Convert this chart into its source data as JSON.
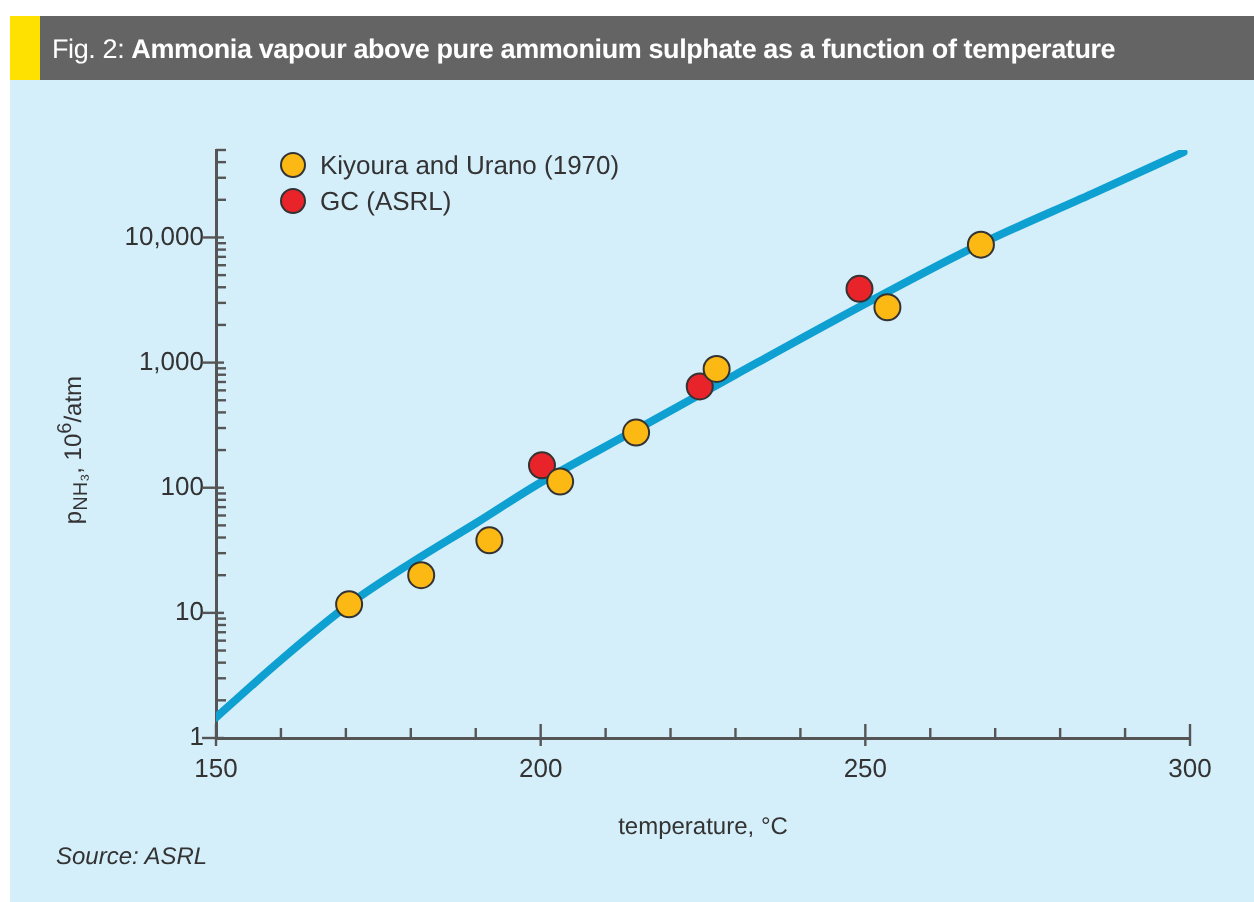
{
  "chart_data": {
    "type": "scatter",
    "title": "Fig. 2: Ammonia vapour above pure ammonium sulphate as a function of temperature",
    "xlabel": "temperature, °C",
    "ylabel": "p$_{NH₃}$, 10$^{6}$/atm",
    "annotations": [
      "Source: ASRL"
    ],
    "log": "y",
    "grid": false,
    "legend": "top left",
    "marker": "circle",
    "xlim": [
      150,
      300
    ],
    "xticks": [
      150,
      {
        "value": 160,
        "label": null
      },
      {
        "value": 170,
        "label": null
      },
      {
        "value": 180,
        "label": null
      },
      {
        "value": 190,
        "label": null
      },
      200,
      {
        "value": 210,
        "label": null
      },
      {
        "value": 220,
        "label": null
      },
      {
        "value": 230,
        "label": null
      },
      {
        "value": 240,
        "label": null
      },
      250,
      {
        "value": 260,
        "label": null
      },
      {
        "value": 270,
        "label": null
      },
      {
        "value": 280,
        "label": null
      },
      {
        "value": 290,
        "label": null
      },
      300
    ],
    "ylim": [
      1,
      50000
    ],
    "yticks": [
      1,
      {
        "value": 2,
        "label": null
      },
      {
        "value": 3,
        "label": null
      },
      {
        "value": 4,
        "label": null
      },
      {
        "value": 5,
        "label": null
      },
      {
        "value": 6,
        "label": null
      },
      {
        "value": 7,
        "label": null
      },
      {
        "value": 8,
        "label": null
      },
      {
        "value": 9,
        "label": null
      },
      10,
      {
        "value": 20,
        "label": null
      },
      {
        "value": 30,
        "label": null
      },
      {
        "value": 40,
        "label": null
      },
      {
        "value": 50,
        "label": null
      },
      {
        "value": 60,
        "label": null
      },
      {
        "value": 70,
        "label": null
      },
      {
        "value": 80,
        "label": null
      },
      {
        "value": 90,
        "label": null
      },
      100,
      {
        "value": 200,
        "label": null
      },
      {
        "value": 300,
        "label": null
      },
      {
        "value": 400,
        "label": null
      },
      {
        "value": 500,
        "label": null
      },
      {
        "value": 600,
        "label": null
      },
      {
        "value": 700,
        "label": null
      },
      {
        "value": 800,
        "label": null
      },
      {
        "value": 900,
        "label": null
      },
      {
        "value": 1000,
        "label": "1,000"
      },
      {
        "value": 2000,
        "label": null
      },
      {
        "value": 3000,
        "label": null
      },
      {
        "value": 4000,
        "label": null
      },
      {
        "value": 5000,
        "label": null
      },
      {
        "value": 6000,
        "label": null
      },
      {
        "value": 7000,
        "label": null
      },
      {
        "value": 8000,
        "label": null
      },
      {
        "value": 9000,
        "label": null
      },
      {
        "value": 10000,
        "label": "10,000"
      },
      {
        "value": 20000,
        "label": null
      },
      {
        "value": 30000,
        "label": null
      },
      {
        "value": 40000,
        "label": null
      },
      {
        "value": 50000,
        "label": null
      }
    ],
    "series": [
      {
        "type": "line",
        "color": "#0fa0d2",
        "marker": "none",
        "x": [
          150,
          160,
          170.5,
          180,
          190,
          200,
          214.7,
          230,
          250,
          267.8,
          285,
          299
        ],
        "values": [
          1.46,
          4.2,
          11.7,
          25,
          52,
          110,
          290,
          800,
          2950,
          8900,
          22400,
          48000
        ]
      },
      {
        "type": "scatter",
        "name": "Kiyoura and Urano (1970)",
        "color": "#fdb913",
        "x": [
          170.5,
          181.6,
          192.1,
          203,
          214.7,
          227.1,
          253.4,
          267.8
        ],
        "values": [
          11.7,
          20,
          38,
          112,
          276,
          890,
          2770,
          8760
        ]
      },
      {
        "type": "scatter",
        "name": "GC (ASRL)",
        "color": "#e8232a",
        "x": [
          200.2,
          224.5,
          249.1
        ],
        "values": [
          151,
          645,
          3890
        ]
      }
    ]
  }
}
